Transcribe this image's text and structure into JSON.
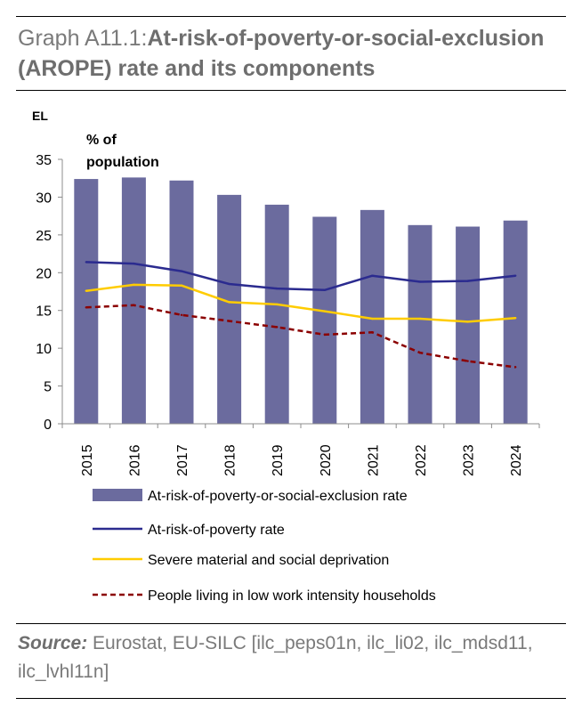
{
  "header": {
    "prefix": "Graph A11.1:",
    "title": "At-risk-of-poverty-or-social-exclusion (AROPE) rate and its components"
  },
  "source": {
    "label": "Source:",
    "text": "Eurostat, EU-SILC [ilc_peps01n, ilc_li02, ilc_mdsd11, ilc_lvhl11n]"
  },
  "chart_data": {
    "type": "bar",
    "country_label": "EL",
    "unit_label_line1": "% of",
    "unit_label_line2": "population",
    "categories": [
      "2015",
      "2016",
      "2017",
      "2018",
      "2019",
      "2020",
      "2021",
      "2022",
      "2023",
      "2024"
    ],
    "ylim": [
      0,
      35
    ],
    "yticks": [
      0,
      5,
      10,
      15,
      20,
      25,
      30,
      35
    ],
    "grid": false,
    "series": [
      {
        "name": "At-risk-of-poverty-or-social-exclusion rate",
        "type": "bar",
        "color": "#6b6b9e",
        "values": [
          32.4,
          32.6,
          32.2,
          30.3,
          29.0,
          27.4,
          28.3,
          26.3,
          26.1,
          26.9
        ]
      },
      {
        "name": "At-risk-of-poverty rate",
        "type": "line",
        "style": "solid",
        "color": "#2b2b8f",
        "values": [
          21.4,
          21.2,
          20.2,
          18.5,
          17.9,
          17.7,
          19.6,
          18.8,
          18.9,
          19.6
        ]
      },
      {
        "name": "Severe material and social deprivation",
        "type": "line",
        "style": "solid",
        "color": "#ffcc00",
        "values": [
          17.6,
          18.4,
          18.3,
          16.1,
          15.8,
          14.9,
          13.9,
          13.9,
          13.5,
          14.0
        ]
      },
      {
        "name": "People living in low work intensity households",
        "type": "line",
        "style": "dashed",
        "color": "#8b0000",
        "values": [
          15.4,
          15.7,
          14.4,
          13.6,
          12.8,
          11.8,
          12.1,
          9.4,
          8.3,
          7.5
        ]
      }
    ]
  }
}
